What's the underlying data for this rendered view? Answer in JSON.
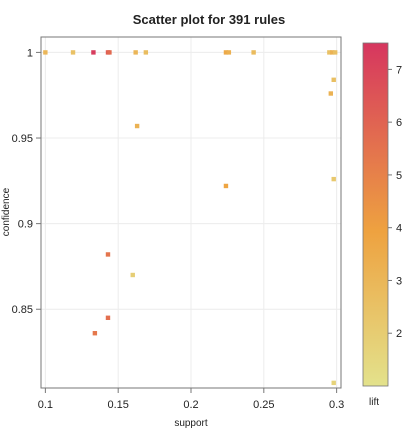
{
  "chart_data": {
    "type": "scatter",
    "title": "Scatter plot for 391 rules",
    "xlabel": "support",
    "ylabel": "confidence",
    "colorbar_label": "lift",
    "xlim": [
      0.097,
      0.303
    ],
    "ylim": [
      0.804,
      1.009
    ],
    "x_ticks": [
      0.1,
      0.15,
      0.2,
      0.25,
      0.3
    ],
    "x_tick_labels": [
      "0.1",
      "0.15",
      "0.2",
      "0.25",
      "0.3"
    ],
    "y_ticks": [
      0.85,
      0.9,
      0.95,
      1.0
    ],
    "y_tick_labels": [
      "0.85",
      "0.9",
      "0.95",
      "1"
    ],
    "color_scale": {
      "min": 1.0,
      "max": 7.5,
      "ticks": [
        2,
        3,
        4,
        5,
        6,
        7
      ],
      "tick_labels": [
        "2",
        "3",
        "4",
        "5",
        "6",
        "7"
      ],
      "low_color": "#e3e28c",
      "mid_color": "#eea240",
      "high_color": "#d6365f"
    },
    "points": [
      {
        "x": 0.1,
        "y": 1.0,
        "lift": 3.0
      },
      {
        "x": 0.119,
        "y": 1.0,
        "lift": 2.5
      },
      {
        "x": 0.133,
        "y": 1.0,
        "lift": 7.3
      },
      {
        "x": 0.143,
        "y": 1.0,
        "lift": 6.2
      },
      {
        "x": 0.144,
        "y": 1.0,
        "lift": 5.8
      },
      {
        "x": 0.162,
        "y": 1.0,
        "lift": 3.0
      },
      {
        "x": 0.169,
        "y": 1.0,
        "lift": 2.7
      },
      {
        "x": 0.224,
        "y": 1.0,
        "lift": 3.6
      },
      {
        "x": 0.226,
        "y": 1.0,
        "lift": 3.3
      },
      {
        "x": 0.243,
        "y": 1.0,
        "lift": 2.8
      },
      {
        "x": 0.295,
        "y": 1.0,
        "lift": 2.5
      },
      {
        "x": 0.297,
        "y": 1.0,
        "lift": 3.2
      },
      {
        "x": 0.299,
        "y": 1.0,
        "lift": 2.6
      },
      {
        "x": 0.298,
        "y": 0.984,
        "lift": 2.6
      },
      {
        "x": 0.296,
        "y": 0.976,
        "lift": 3.2
      },
      {
        "x": 0.163,
        "y": 0.957,
        "lift": 3.2
      },
      {
        "x": 0.298,
        "y": 0.926,
        "lift": 2.2
      },
      {
        "x": 0.224,
        "y": 0.922,
        "lift": 3.8
      },
      {
        "x": 0.143,
        "y": 0.882,
        "lift": 5.4
      },
      {
        "x": 0.16,
        "y": 0.87,
        "lift": 1.9
      },
      {
        "x": 0.143,
        "y": 0.845,
        "lift": 5.6
      },
      {
        "x": 0.134,
        "y": 0.836,
        "lift": 5.3
      },
      {
        "x": 0.298,
        "y": 0.807,
        "lift": 1.7
      }
    ]
  }
}
